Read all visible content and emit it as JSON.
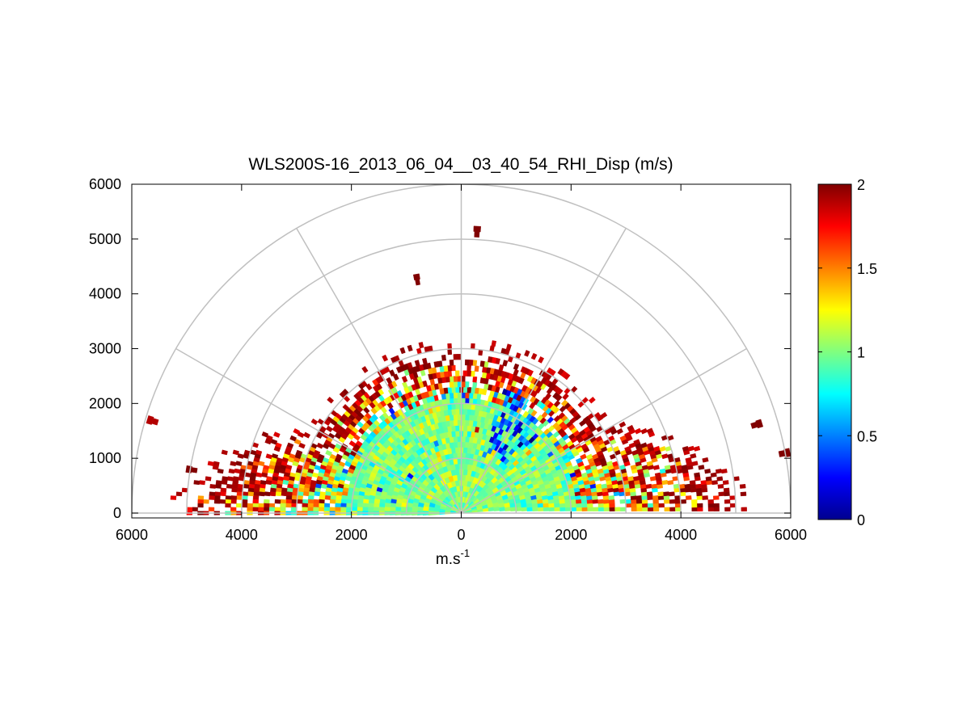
{
  "chart_data": {
    "type": "heatmap",
    "subtype": "polar-rhi-sector",
    "title": "WLS200S-16_2013_06_04__03_40_54_RHI_Disp (m/s)",
    "xlabel": "m.s",
    "xlabel_superscript": "-1",
    "ylabel": "",
    "xlim": [
      -6000,
      6000
    ],
    "ylim": [
      0,
      6000
    ],
    "x_tick_values": [
      -6000,
      -4000,
      -2000,
      0,
      2000,
      4000,
      6000
    ],
    "x_tick_labels": [
      "6000",
      "4000",
      "2000",
      "0",
      "2000",
      "4000",
      "6000"
    ],
    "y_tick_values": [
      0,
      1000,
      2000,
      3000,
      4000,
      5000,
      6000
    ],
    "y_tick_labels": [
      "0",
      "1000",
      "2000",
      "3000",
      "4000",
      "5000",
      "6000"
    ],
    "polar_grid": {
      "ring_radii": [
        1000,
        2000,
        3000,
        4000,
        5000,
        6000
      ],
      "spoke_angles_deg": [
        0,
        30,
        60,
        90,
        120,
        150,
        180
      ]
    },
    "colormap": "jet",
    "color_range": [
      0,
      2
    ],
    "colorbar_ticks": [
      0,
      0.5,
      1,
      1.5,
      2
    ],
    "colorbar_tick_labels": [
      "0",
      "0.5",
      "1",
      "1.5",
      "2"
    ],
    "data_summary": {
      "dense_core": {
        "range_max_m": 2800,
        "typical_value": 1.0
      },
      "fringe_high_values": {
        "typical_value": 2.0
      },
      "low_value_patches": {
        "azimuth_deg": [
          45,
          70
        ],
        "range_m": [
          1200,
          2400
        ],
        "typical_value": 0.5
      },
      "isolated_cells": [
        {
          "x": 350,
          "y": 5130,
          "value": 2.0
        },
        {
          "x": -750,
          "y": 4270,
          "value": 2.0
        },
        {
          "x": 5400,
          "y": 1550,
          "value": 2.0
        },
        {
          "x": 5900,
          "y": 1020,
          "value": 2.0
        },
        {
          "x": -5600,
          "y": 1750,
          "value": 1.9
        },
        {
          "x": -4900,
          "y": 850,
          "value": 2.0
        }
      ]
    }
  }
}
